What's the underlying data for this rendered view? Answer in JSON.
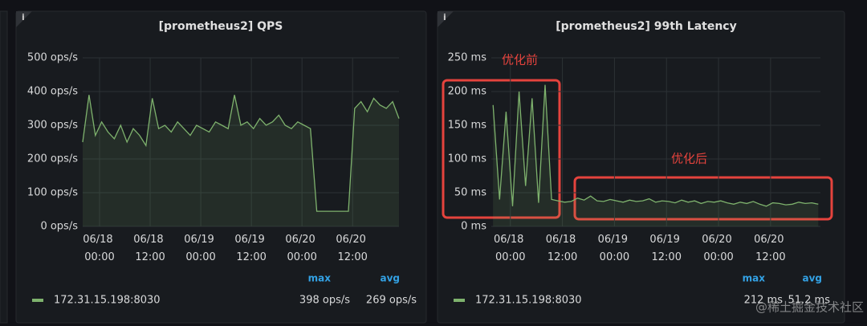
{
  "chart_data": [
    {
      "type": "line",
      "title": "[prometheus2] QPS",
      "x": [
        -4,
        -2.5,
        -1,
        0.5,
        2,
        3.5,
        5,
        6.5,
        8,
        9.5,
        11,
        12.5,
        14,
        15.5,
        17,
        18.5,
        20,
        21.5,
        23,
        24.5,
        26,
        27.5,
        29,
        30.5,
        32,
        33.5,
        35,
        36.5,
        38,
        39.5,
        41,
        42.5,
        44,
        45.5,
        47,
        48.5,
        50,
        51.5,
        53,
        54.5,
        56,
        57.5,
        59,
        60.5,
        62,
        63.5,
        65,
        66.5,
        68,
        69.5,
        71
      ],
      "series": [
        {
          "name": "172.31.15.198:8030",
          "color": "#7eb26d",
          "values": [
            250,
            390,
            270,
            310,
            280,
            260,
            300,
            250,
            290,
            270,
            240,
            380,
            290,
            300,
            280,
            310,
            290,
            270,
            300,
            290,
            280,
            310,
            300,
            290,
            390,
            300,
            310,
            290,
            320,
            300,
            310,
            330,
            300,
            290,
            310,
            300,
            290,
            45,
            45,
            45,
            45,
            45,
            45,
            350,
            370,
            340,
            380,
            360,
            350,
            370,
            320
          ],
          "stats": [
            "398 ops/s",
            "269 ops/s"
          ]
        }
      ],
      "stat_headers": [
        "max",
        "avg"
      ],
      "xlim": [
        -4,
        71
      ],
      "xticks": [
        {
          "value": 0,
          "label": "06/18 00:00"
        },
        {
          "value": 12,
          "label": "06/18 12:00"
        },
        {
          "value": 24,
          "label": "06/19 00:00"
        },
        {
          "value": 36,
          "label": "06/19 12:00"
        },
        {
          "value": 48,
          "label": "06/20 00:00"
        },
        {
          "value": 60,
          "label": "06/20 12:00"
        }
      ],
      "ylim": [
        0,
        500
      ],
      "yticks": [
        {
          "value": 0,
          "label": "0 ops/s"
        },
        {
          "value": 100,
          "label": "100 ops/s"
        },
        {
          "value": 200,
          "label": "200 ops/s"
        },
        {
          "value": 300,
          "label": "300 ops/s"
        },
        {
          "value": 400,
          "label": "400 ops/s"
        },
        {
          "value": 500,
          "label": "500 ops/s"
        }
      ],
      "grid": true
    },
    {
      "type": "line",
      "title": "[prometheus2] 99th Latency",
      "x": [
        -4,
        -2.5,
        -1,
        0.5,
        2,
        3.5,
        5,
        6.5,
        8,
        9.5,
        11,
        12.5,
        14,
        15.5,
        17,
        18.5,
        20,
        21.5,
        23,
        24.5,
        26,
        27.5,
        29,
        30.5,
        32,
        33.5,
        35,
        36.5,
        38,
        39.5,
        41,
        42.5,
        44,
        45.5,
        47,
        48.5,
        50,
        51.5,
        53,
        54.5,
        56,
        57.5,
        59,
        60.5,
        62,
        63.5,
        65,
        66.5,
        68,
        69.5,
        71
      ],
      "series": [
        {
          "name": "172.31.15.198:8030",
          "color": "#7eb26d",
          "values": [
            180,
            40,
            170,
            30,
            200,
            60,
            190,
            35,
            210,
            40,
            38,
            36,
            37,
            42,
            39,
            45,
            38,
            37,
            40,
            38,
            36,
            39,
            37,
            38,
            41,
            36,
            38,
            37,
            35,
            39,
            36,
            38,
            34,
            37,
            36,
            38,
            35,
            33,
            36,
            34,
            37,
            33,
            30,
            35,
            34,
            32,
            33,
            36,
            34,
            35,
            33
          ],
          "stats": [
            "212 ms",
            "51.2 ms"
          ]
        }
      ],
      "stat_headers": [
        "max",
        "avg"
      ],
      "xlim": [
        -4.4,
        71.5
      ],
      "xticks": [
        {
          "value": 0,
          "label": "06/18 00:00"
        },
        {
          "value": 12,
          "label": "06/18 12:00"
        },
        {
          "value": 24,
          "label": "06/19 00:00"
        },
        {
          "value": 36,
          "label": "06/19 12:00"
        },
        {
          "value": 48,
          "label": "06/20 00:00"
        },
        {
          "value": 60,
          "label": "06/20 12:00"
        }
      ],
      "ylim": [
        0,
        250
      ],
      "yticks": [
        {
          "value": 0,
          "label": "0 ms"
        },
        {
          "value": 50,
          "label": "50 ms"
        },
        {
          "value": 100,
          "label": "100 ms"
        },
        {
          "value": 150,
          "label": "150 ms"
        },
        {
          "value": 200,
          "label": "200 ms"
        },
        {
          "value": 250,
          "label": "250 ms"
        }
      ],
      "annotations": [
        "优化前",
        "优化后"
      ],
      "grid": true
    }
  ],
  "watermark": "@稀土掘金技术社区"
}
